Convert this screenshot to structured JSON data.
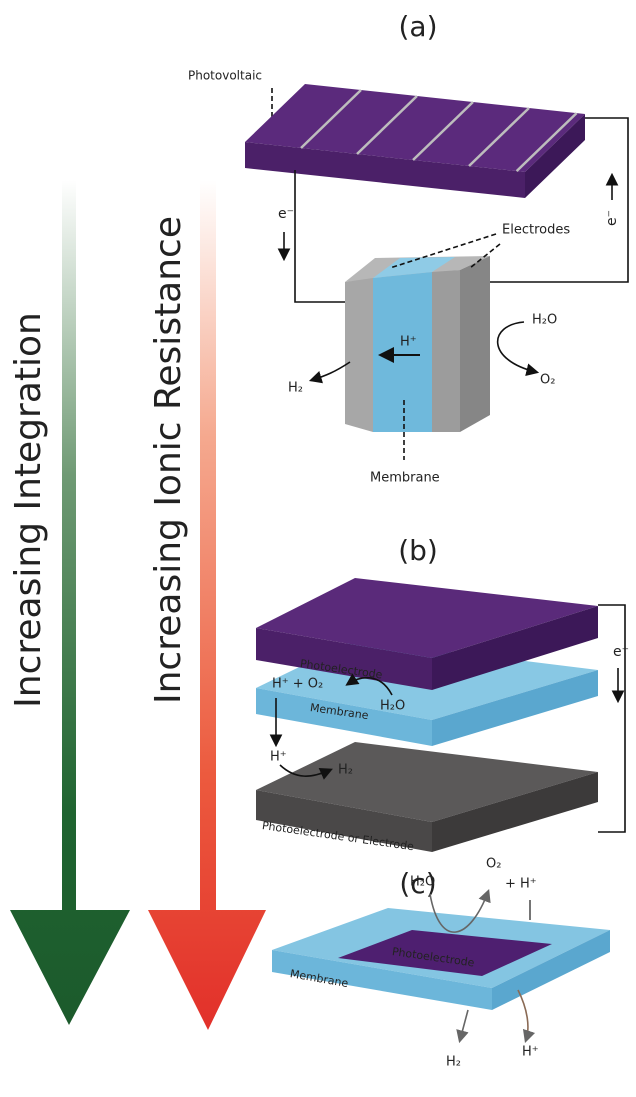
{
  "arrows": {
    "integration": "Increasing Integration",
    "ionic_resistance": "Increasing Ionic Resistance"
  },
  "panel_a": {
    "label": "(a)",
    "photovoltaic": "Photovoltaic",
    "electrodes": "Electrodes",
    "electron_left": "e⁻",
    "electron_right": "e⁻",
    "proton": "H⁺",
    "water": "H₂O",
    "hydrogen": "H₂",
    "oxygen": "O₂",
    "membrane": "Membrane"
  },
  "panel_b": {
    "label": "(b)",
    "photoelectrode": "Photoelectrode",
    "proton_oxygen": "H⁺ + O₂",
    "water": "H₂O",
    "membrane": "Membrane",
    "proton": "H⁺",
    "hydrogen": "H₂",
    "bottom_layer": "Photoelectrode or Electrode",
    "electron": "e⁻"
  },
  "panel_c": {
    "label": "(c)",
    "water": "H₂O",
    "oxygen": "O₂",
    "proton_top": "+ H⁺",
    "photoelectrode": "Photoelectrode",
    "membrane": "Membrane",
    "hydrogen": "H₂",
    "proton_bottom": "H⁺"
  }
}
